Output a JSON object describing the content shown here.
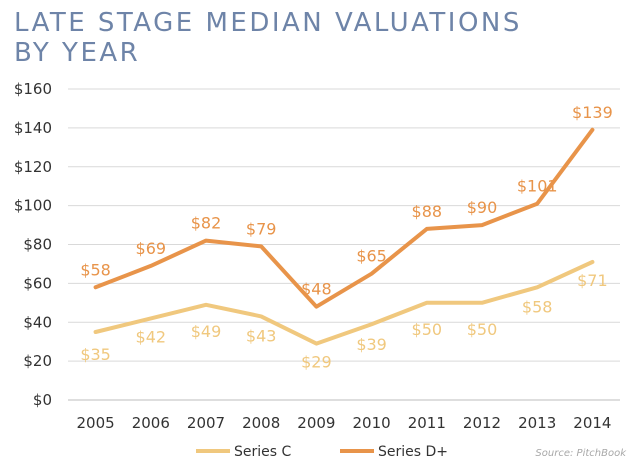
{
  "chart_data": {
    "type": "line",
    "title_lines": [
      "LATE STAGE MEDIAN VALUATIONS",
      "BY YEAR"
    ],
    "categories": [
      "2005",
      "2006",
      "2007",
      "2008",
      "2009",
      "2010",
      "2011",
      "2012",
      "2013",
      "2014"
    ],
    "series": [
      {
        "name": "Series C",
        "color": "#f0c87e",
        "values": [
          35,
          42,
          49,
          43,
          29,
          39,
          50,
          50,
          58,
          71
        ],
        "labels": [
          "$35",
          "$42",
          "$49",
          "$43",
          "$29",
          "$39",
          "$50",
          "$50",
          "$58",
          "$71"
        ]
      },
      {
        "name": "Series D+",
        "color": "#e8944a",
        "values": [
          58,
          69,
          82,
          79,
          48,
          65,
          88,
          90,
          101,
          139
        ],
        "labels": [
          "$58",
          "$69",
          "$82",
          "$79",
          "$48",
          "$65",
          "$88",
          "$90",
          "$101",
          "$139"
        ]
      }
    ],
    "ylim": [
      0,
      160
    ],
    "yticks": [
      0,
      20,
      40,
      60,
      80,
      100,
      120,
      140,
      160
    ],
    "ytick_labels": [
      "$0",
      "$20",
      "$40",
      "$60",
      "$80",
      "$100",
      "$120",
      "$140",
      "$160"
    ],
    "grid": true,
    "legend_position": "bottom-center",
    "source": "Source: PitchBook"
  }
}
